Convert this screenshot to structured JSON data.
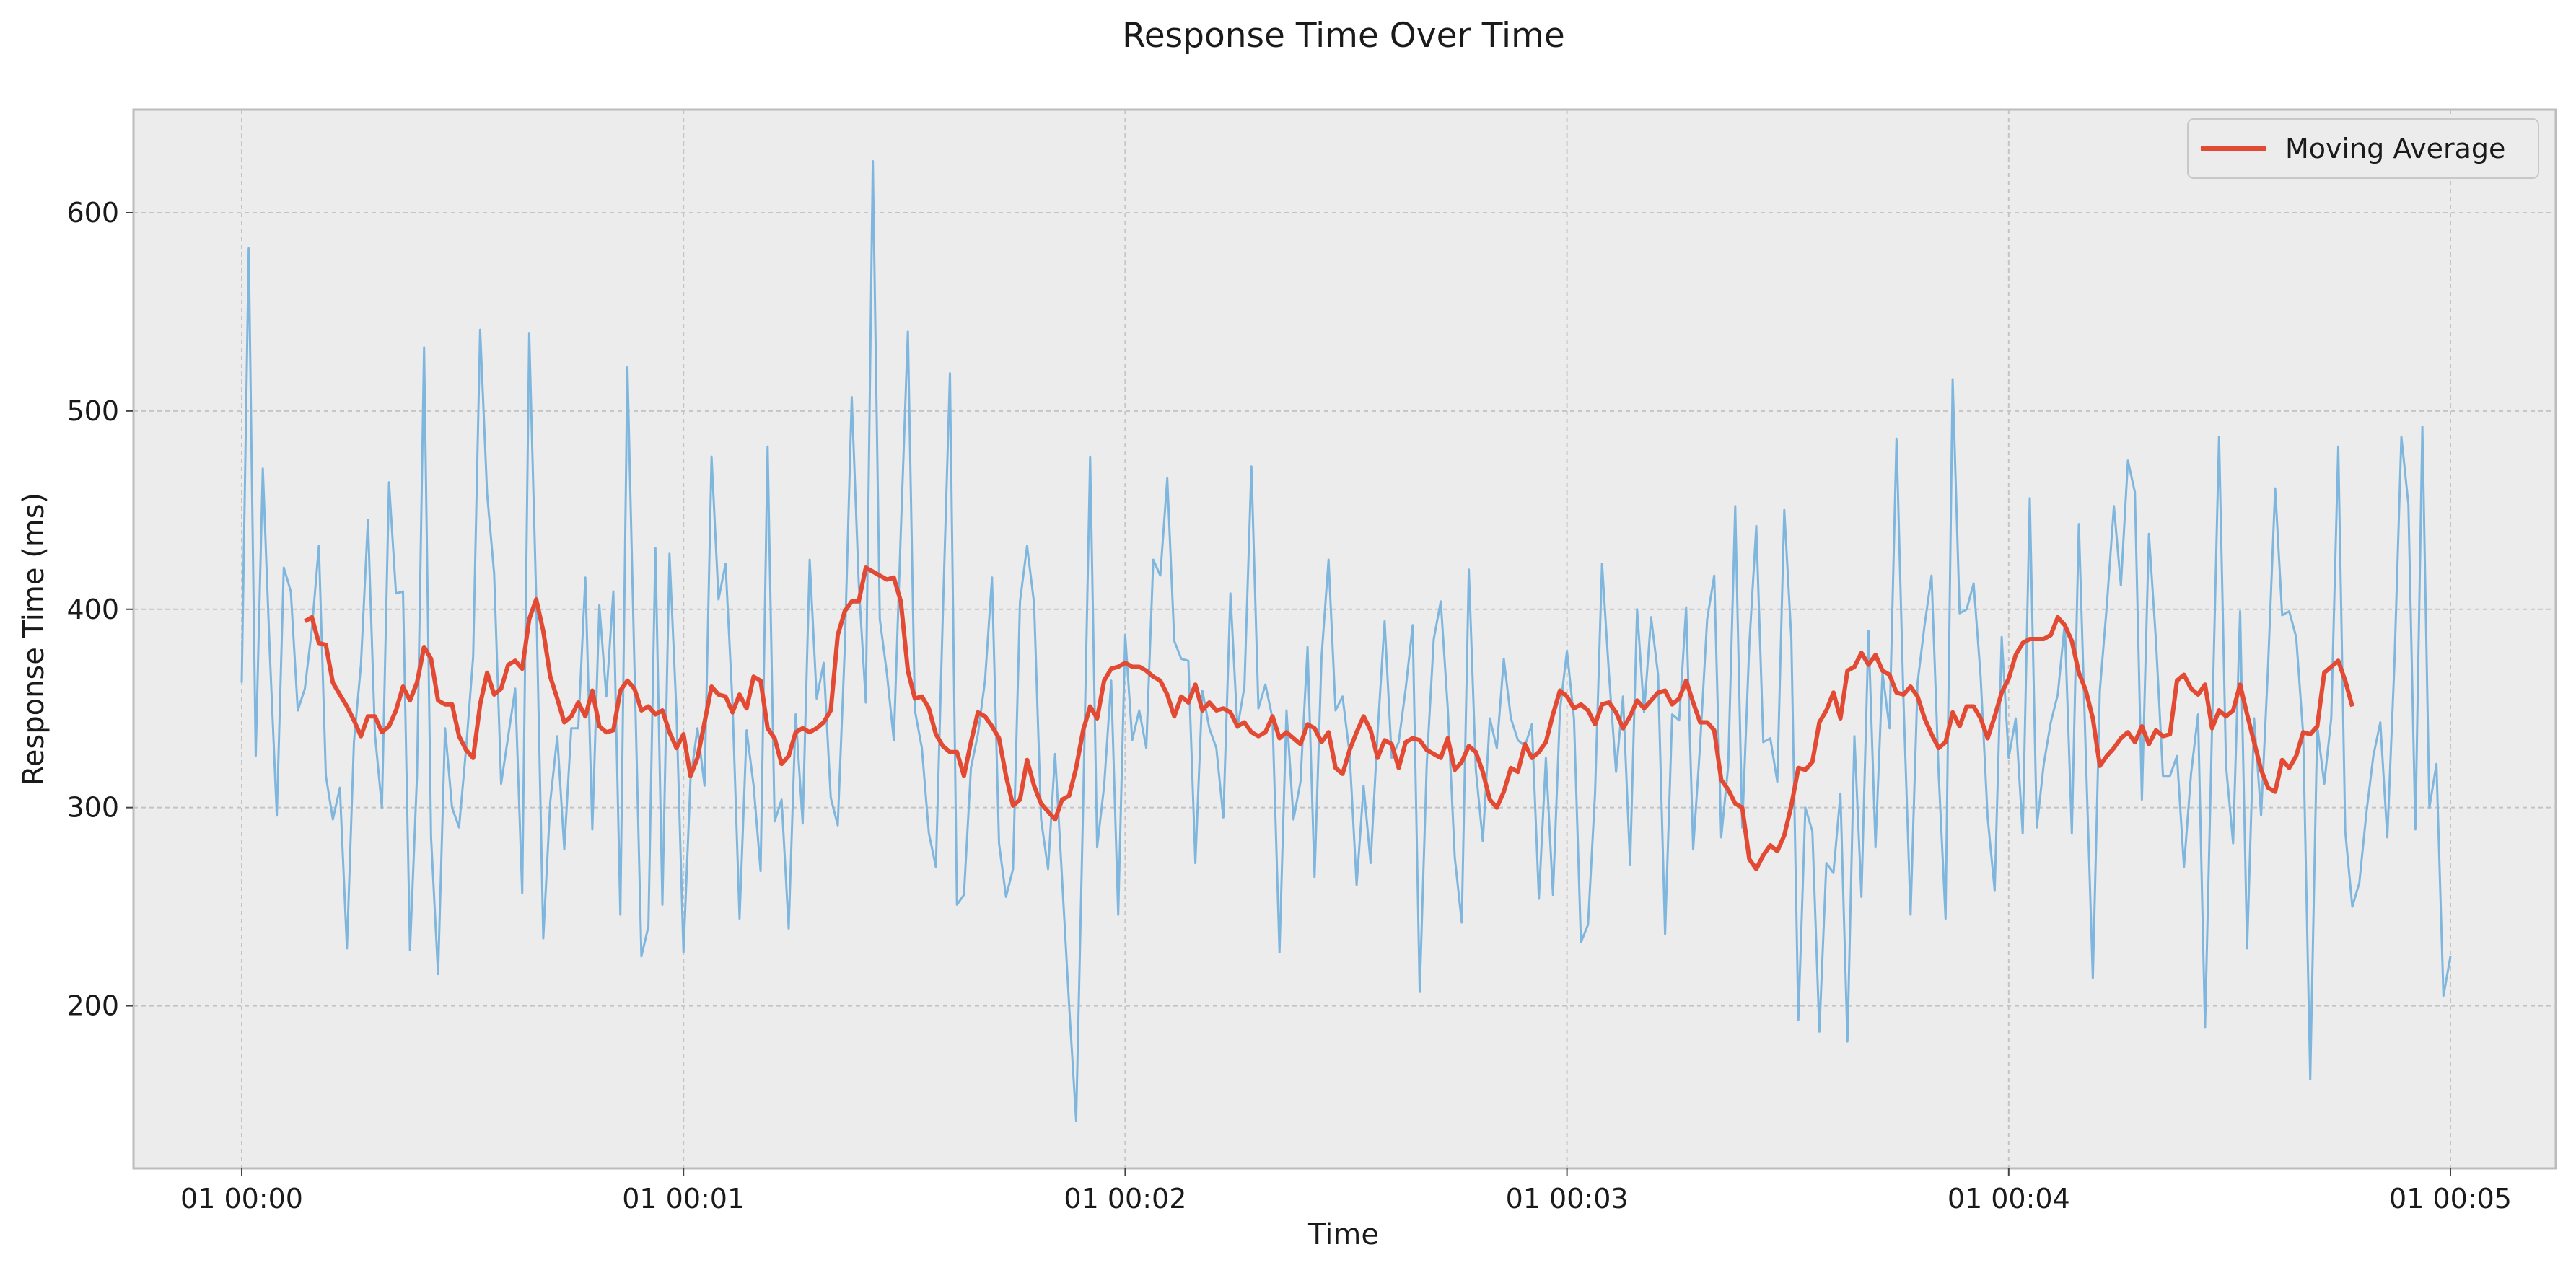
{
  "chart_data": {
    "type": "line",
    "title": "Response Time Over Time",
    "xlabel": "Time",
    "ylabel": "Response Time (ms)",
    "x_start": "01 00:00",
    "x_end": "01 00:05",
    "x_ticks": [
      "01 00:00",
      "01 00:01",
      "01 00:02",
      "01 00:03",
      "01 00:04",
      "01 00:05"
    ],
    "y_ticks": [
      200,
      300,
      400,
      500,
      600
    ],
    "ylim": [
      118,
      652
    ],
    "xlim_minutes": [
      -0.25,
      5.23
    ],
    "grid": true,
    "legend_position": "top-right",
    "series": [
      {
        "key": "raw",
        "color": "#7fb6de",
        "values": [
          363,
          582,
          326,
          471,
          378,
          296,
          421,
          409,
          349,
          360,
          390,
          432,
          316,
          294,
          310,
          229,
          333,
          372,
          445,
          337,
          300,
          464,
          408,
          409,
          228,
          316,
          532,
          285,
          216,
          340,
          300,
          290,
          330,
          376,
          541,
          458,
          418,
          312,
          336,
          360,
          257,
          539,
          406,
          234,
          303,
          336,
          279,
          340,
          340,
          416,
          289,
          402,
          356,
          409,
          246,
          522,
          372,
          225,
          240,
          431,
          251,
          428,
          348,
          227,
          314,
          340,
          311,
          477,
          405,
          423,
          352,
          244,
          339,
          311,
          268,
          482,
          293,
          304,
          239,
          347,
          292,
          425,
          355,
          373,
          305,
          291,
          380,
          507,
          413,
          353,
          626,
          395,
          368,
          334,
          439,
          540,
          349,
          330,
          287,
          270,
          398,
          519,
          251,
          256,
          320,
          337,
          364,
          416,
          282,
          255,
          269,
          404,
          432,
          403,
          294,
          269,
          327,
          264,
          200,
          142,
          301,
          477,
          280,
          311,
          364,
          246,
          387,
          334,
          349,
          330,
          425,
          417,
          466,
          384,
          375,
          374,
          272,
          359,
          340,
          330,
          295,
          408,
          340,
          361,
          472,
          350,
          362,
          345,
          227,
          349,
          294,
          313,
          381,
          265,
          376,
          425,
          349,
          356,
          327,
          261,
          311,
          272,
          338,
          394,
          325,
          333,
          360,
          392,
          207,
          322,
          385,
          404,
          350,
          275,
          242,
          420,
          319,
          283,
          345,
          330,
          375,
          345,
          334,
          331,
          342,
          254,
          325,
          256,
          349,
          379,
          345,
          232,
          241,
          307,
          423,
          367,
          318,
          356,
          271,
          400,
          348,
          396,
          367,
          236,
          347,
          344,
          401,
          279,
          332,
          395,
          417,
          285,
          321,
          452,
          290,
          382,
          442,
          333,
          335,
          313,
          450,
          385,
          193,
          300,
          288,
          187,
          272,
          267,
          307,
          182,
          336,
          255,
          389,
          280,
          368,
          340,
          486,
          354,
          246,
          363,
          392,
          417,
          318,
          244,
          516,
          398,
          400,
          413,
          366,
          295,
          258,
          386,
          325,
          345,
          287,
          456,
          290,
          322,
          343,
          357,
          393,
          287,
          443,
          326,
          214,
          359,
          402,
          452,
          412,
          475,
          459,
          304,
          438,
          384,
          316,
          316,
          326,
          270,
          317,
          347,
          189,
          340,
          487,
          321,
          282,
          399,
          229,
          345,
          296,
          372,
          461,
          397,
          399,
          386,
          337,
          163,
          341,
          312,
          345,
          482,
          288,
          250,
          262,
          297,
          326,
          343,
          285,
          372,
          487,
          453,
          289,
          492,
          300,
          322,
          205,
          225
        ]
      },
      {
        "key": "ma",
        "name": "Moving Average",
        "color": "#e24a33",
        "start_index": 9,
        "values": [
          394,
          396,
          383,
          382,
          363,
          357,
          351,
          344,
          336,
          346,
          346,
          338,
          341,
          349,
          361,
          354,
          363,
          381,
          375,
          354,
          352,
          352,
          336,
          329,
          325,
          352,
          368,
          357,
          360,
          372,
          374,
          370,
          395,
          405,
          389,
          366,
          355,
          343,
          346,
          353,
          346,
          359,
          341,
          338,
          339,
          359,
          364,
          360,
          349,
          351,
          347,
          349,
          338,
          330,
          337,
          316,
          325,
          343,
          361,
          357,
          356,
          348,
          357,
          350,
          366,
          364,
          340,
          335,
          322,
          326,
          338,
          340,
          338,
          340,
          343,
          349,
          387,
          399,
          404,
          404,
          421,
          419,
          417,
          415,
          416,
          404,
          369,
          355,
          356,
          350,
          337,
          331,
          328,
          328,
          316,
          333,
          348,
          346,
          341,
          335,
          316,
          301,
          304,
          324,
          311,
          302,
          298,
          294,
          304,
          306,
          320,
          339,
          351,
          345,
          364,
          370,
          371,
          373,
          371,
          371,
          369,
          366,
          364,
          357,
          346,
          356,
          353,
          362,
          349,
          353,
          349,
          350,
          348,
          341,
          343,
          338,
          336,
          338,
          346,
          335,
          338,
          335,
          332,
          342,
          340,
          333,
          338,
          320,
          317,
          329,
          338,
          346,
          339,
          325,
          334,
          332,
          320,
          333,
          335,
          334,
          329,
          327,
          325,
          335,
          319,
          323,
          331,
          328,
          318,
          304,
          300,
          308,
          320,
          318,
          332,
          325,
          328,
          333,
          347,
          359,
          356,
          350,
          352,
          349,
          342,
          352,
          353,
          348,
          340,
          346,
          354,
          350,
          354,
          358,
          359,
          352,
          355,
          364,
          353,
          343,
          343,
          339,
          314,
          309,
          302,
          300,
          274,
          269,
          276,
          281,
          278,
          286,
          301,
          320,
          319,
          323,
          343,
          349,
          358,
          345,
          369,
          371,
          378,
          372,
          377,
          369,
          367,
          358,
          357,
          361,
          356,
          345,
          337,
          330,
          333,
          348,
          341,
          351,
          351,
          345,
          335,
          346,
          358,
          365,
          377,
          383,
          385,
          385,
          385,
          387,
          396,
          392,
          384,
          368,
          359,
          345,
          321,
          326,
          330,
          335,
          338,
          333,
          341,
          332,
          339,
          336,
          337,
          364,
          367,
          360,
          357,
          362,
          340,
          349,
          346,
          349,
          362,
          347,
          333,
          319,
          310,
          308,
          324,
          320,
          326,
          338,
          337,
          341,
          368,
          371,
          374,
          364,
          351
        ]
      }
    ],
    "legend": [
      "Moving Average"
    ]
  }
}
